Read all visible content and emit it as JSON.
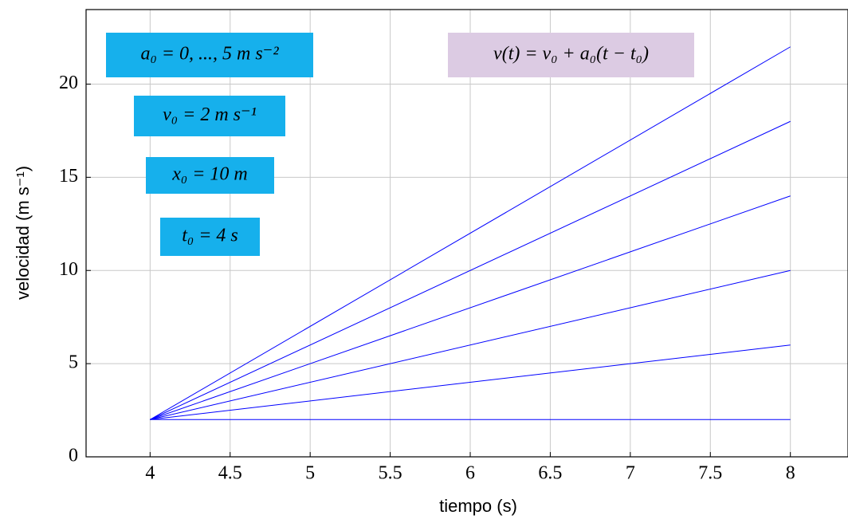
{
  "chart_data": {
    "type": "line",
    "x_label": "tiempo (s)",
    "y_label": "velocidad (m s⁻¹)",
    "x": [
      4,
      8
    ],
    "series": [
      {
        "color": "#0000ff",
        "values": [
          2,
          2
        ]
      },
      {
        "color": "#0000ff",
        "values": [
          2,
          6
        ]
      },
      {
        "color": "#0000ff",
        "values": [
          2,
          10
        ]
      },
      {
        "color": "#0000ff",
        "values": [
          2,
          14
        ]
      },
      {
        "color": "#0000ff",
        "values": [
          2,
          18
        ]
      },
      {
        "color": "#0000ff",
        "values": [
          2,
          22
        ]
      }
    ],
    "xlim": [
      3.6,
      8.36
    ],
    "ylim": [
      0,
      24
    ],
    "xticks": [
      4,
      4.5,
      5,
      5.5,
      6,
      6.5,
      7,
      7.5,
      8
    ],
    "yticks": [
      0,
      5,
      10,
      15,
      20
    ],
    "grid": true,
    "annotations": [
      {
        "text": "a₀ = 0, ..., 5 m s⁻²",
        "color": "#16b0ec"
      },
      {
        "text": "v₀ = 2 m s⁻¹",
        "color": "#16b0ec"
      },
      {
        "text": "x₀ = 10 m",
        "color": "#16b0ec"
      },
      {
        "text": "t₀ = 4 s",
        "color": "#16b0ec"
      },
      {
        "text": "v(t) = v₀ + a₀(t − t₀)",
        "color": "#dccbe3"
      }
    ]
  }
}
